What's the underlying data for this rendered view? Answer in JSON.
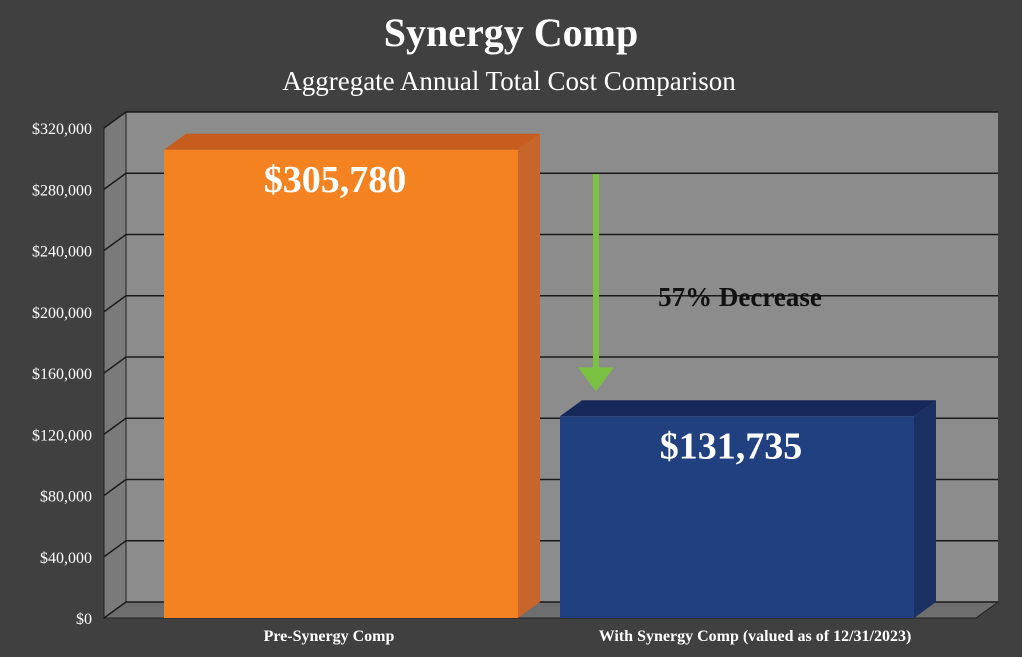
{
  "chart_data": {
    "type": "bar",
    "title": "Synergy Comp",
    "subtitle": "Aggregate Annual Total Cost Comparison",
    "categories": [
      "Pre-Synergy Comp",
      "With Synergy Comp (valued as of 12/31/2023)"
    ],
    "values": [
      305780,
      131735
    ],
    "data_labels": [
      "$305,780",
      "$131,735"
    ],
    "ylim": [
      0,
      320000
    ],
    "yticks": [
      0,
      40000,
      80000,
      120000,
      160000,
      200000,
      240000,
      280000,
      320000
    ],
    "ytick_labels": [
      "$0",
      "$40,000",
      "$80,000",
      "$120,000",
      "$160,000",
      "$200,000",
      "$240,000",
      "$280,000",
      "$320,000"
    ],
    "xlabel": "",
    "ylabel": "",
    "grid": true,
    "three_d": true,
    "annotation": {
      "text": "57% Decrease",
      "arrow": "down",
      "arrow_from_value": 290000,
      "arrow_to_value": 148000
    },
    "colors": {
      "background": "#404040",
      "plot_wall": "#8c8c8c",
      "gridline": "#1a1a1a",
      "arrow": "#7cc242",
      "bars": [
        {
          "front": "#f58220",
          "top": "#c65d1e",
          "side": "#c8652a"
        },
        {
          "front": "#21407f",
          "top": "#16275a",
          "side": "#1b3063"
        }
      ]
    }
  }
}
